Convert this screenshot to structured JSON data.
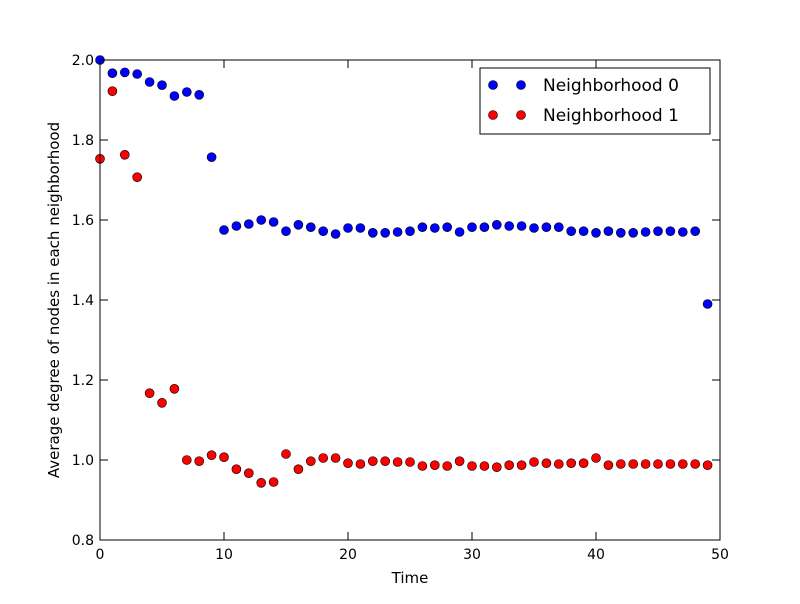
{
  "chart_data": {
    "type": "scatter",
    "title": "",
    "xlabel": "Time",
    "ylabel": "Average degree of nodes in each neighborhood",
    "xlim": [
      0,
      50
    ],
    "ylim": [
      0.8,
      2.0
    ],
    "xticks": [
      0,
      10,
      20,
      30,
      40,
      50
    ],
    "yticks": [
      0.8,
      1.0,
      1.2,
      1.4,
      1.6,
      1.8,
      2.0
    ],
    "xtick_labels": [
      "0",
      "10",
      "20",
      "30",
      "40",
      "50"
    ],
    "ytick_labels": [
      "0.8",
      "1.0",
      "1.2",
      "1.4",
      "1.6",
      "1.8",
      "2.0"
    ],
    "grid": false,
    "legend_position": "top-right",
    "series": [
      {
        "name": "Neighborhood 0",
        "color": "#0000ff",
        "x": [
          0,
          1,
          2,
          3,
          4,
          5,
          6,
          7,
          8,
          9,
          10,
          11,
          12,
          13,
          14,
          15,
          16,
          17,
          18,
          19,
          20,
          21,
          22,
          23,
          24,
          25,
          26,
          27,
          28,
          29,
          30,
          31,
          32,
          33,
          34,
          35,
          36,
          37,
          38,
          39,
          40,
          41,
          42,
          43,
          44,
          45,
          46,
          47,
          48,
          49
        ],
        "y": [
          2.0,
          1.967,
          1.969,
          1.965,
          1.945,
          1.937,
          1.91,
          1.92,
          1.913,
          1.757,
          1.575,
          1.585,
          1.59,
          1.6,
          1.595,
          1.572,
          1.588,
          1.582,
          1.572,
          1.565,
          1.58,
          1.58,
          1.568,
          1.568,
          1.57,
          1.572,
          1.582,
          1.58,
          1.582,
          1.57,
          1.582,
          1.582,
          1.588,
          1.585,
          1.585,
          1.58,
          1.582,
          1.582,
          1.572,
          1.572,
          1.568,
          1.572,
          1.568,
          1.568,
          1.57,
          1.572,
          1.572,
          1.57,
          1.572,
          1.39
        ]
      },
      {
        "name": "Neighborhood 1",
        "color": "#ff0000",
        "x": [
          0,
          1,
          2,
          3,
          4,
          5,
          6,
          7,
          8,
          9,
          10,
          11,
          12,
          13,
          14,
          15,
          16,
          17,
          18,
          19,
          20,
          21,
          22,
          23,
          24,
          25,
          26,
          27,
          28,
          29,
          30,
          31,
          32,
          33,
          34,
          35,
          36,
          37,
          38,
          39,
          40,
          41,
          42,
          43,
          44,
          45,
          46,
          47,
          48,
          49
        ],
        "y": [
          1.753,
          1.922,
          1.763,
          1.707,
          1.167,
          1.143,
          1.178,
          1.0,
          0.997,
          1.012,
          1.007,
          0.977,
          0.967,
          0.943,
          0.945,
          1.015,
          0.977,
          0.997,
          1.005,
          1.005,
          0.992,
          0.99,
          0.997,
          0.997,
          0.995,
          0.995,
          0.985,
          0.987,
          0.985,
          0.997,
          0.985,
          0.985,
          0.982,
          0.987,
          0.987,
          0.995,
          0.992,
          0.99,
          0.992,
          0.992,
          1.005,
          0.987,
          0.99,
          0.99,
          0.99,
          0.99,
          0.99,
          0.99,
          0.99,
          0.987
        ]
      }
    ]
  }
}
